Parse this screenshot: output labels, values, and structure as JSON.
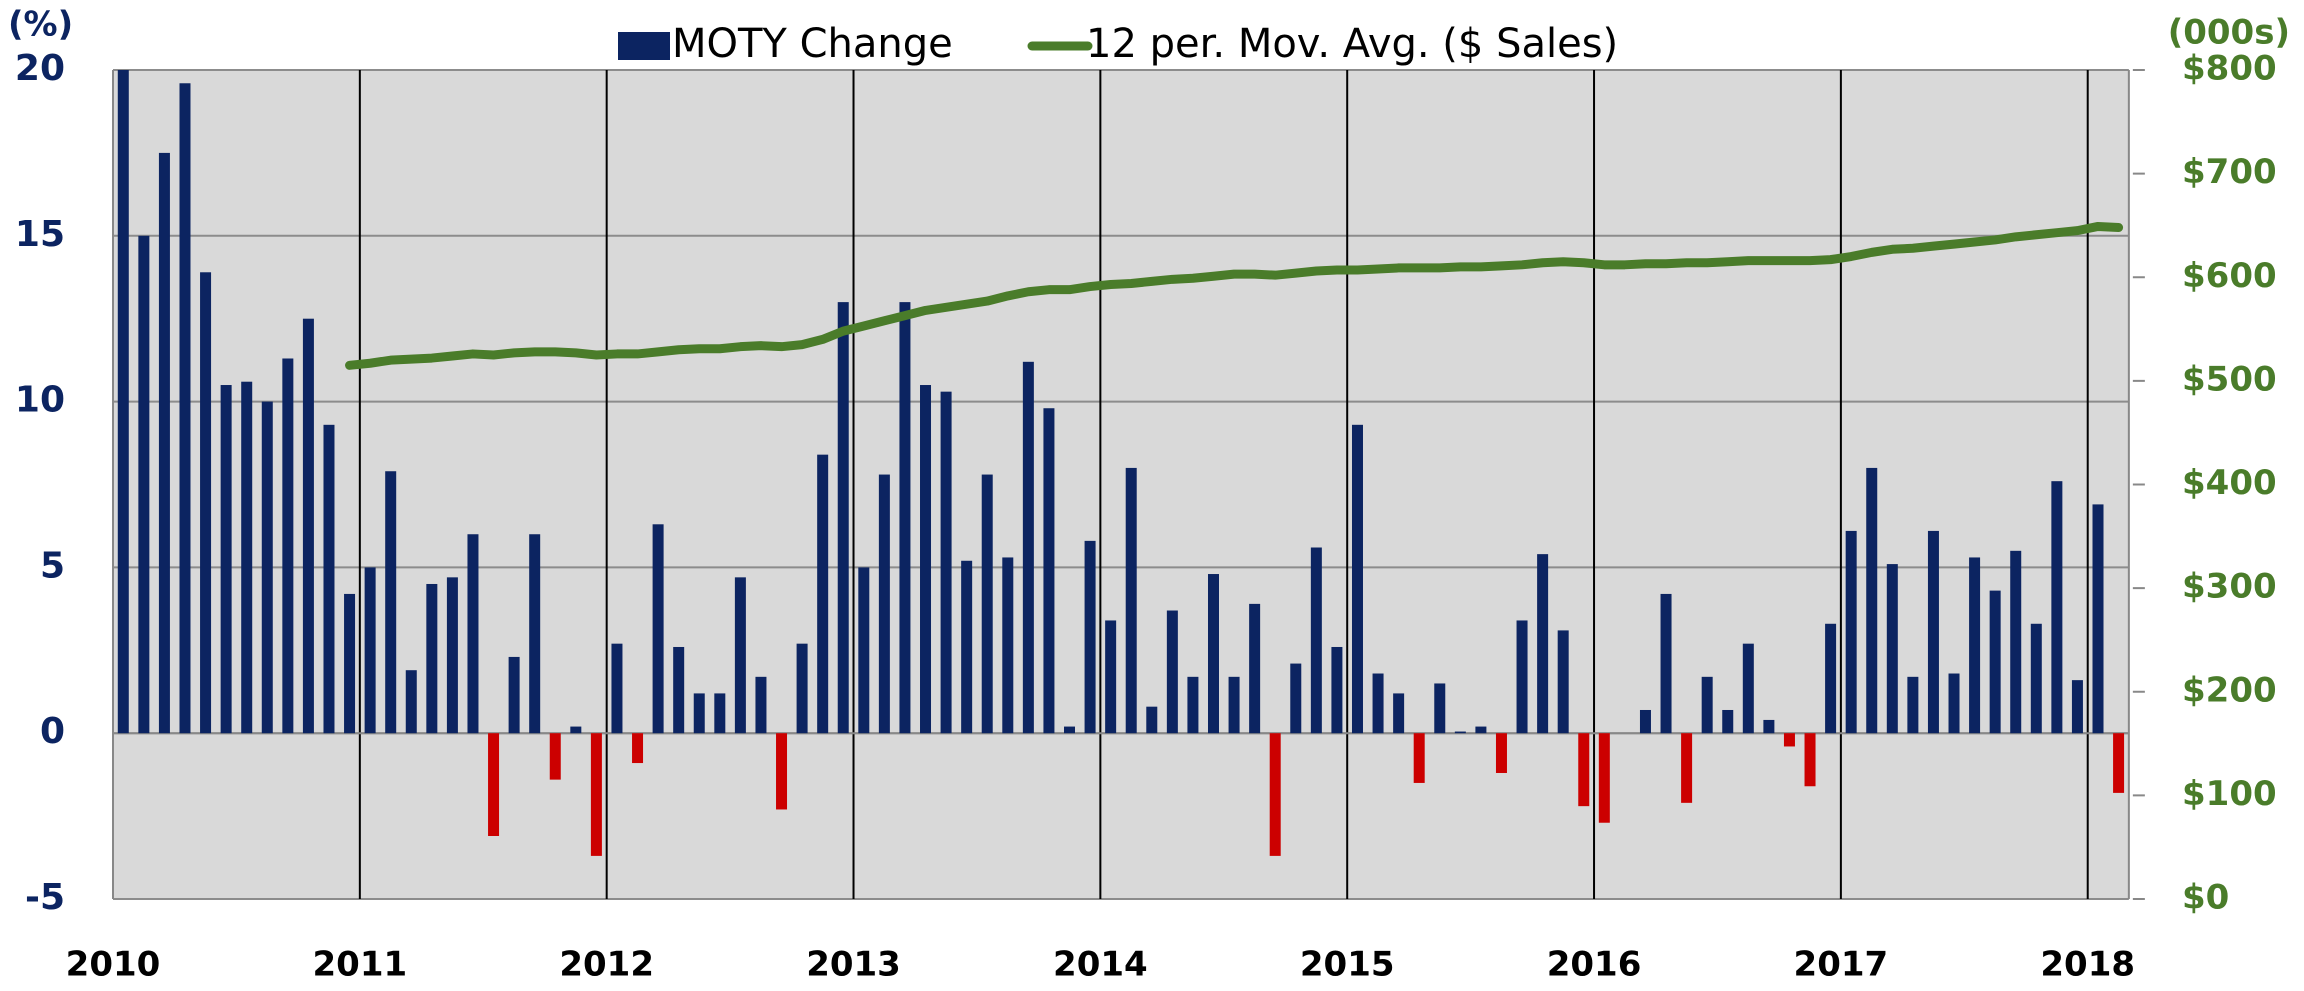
{
  "chart_data": {
    "type": "bar",
    "y_axis_label": "(%)",
    "y2_axis_label": "(000s)",
    "categories": [
      "2010",
      null,
      null,
      null,
      null,
      null,
      null,
      null,
      null,
      null,
      null,
      null,
      "2011",
      null,
      null,
      null,
      null,
      null,
      null,
      null,
      null,
      null,
      null,
      null,
      "2012",
      null,
      null,
      null,
      null,
      null,
      null,
      null,
      null,
      null,
      null,
      null,
      "2013",
      null,
      null,
      null,
      null,
      null,
      null,
      null,
      null,
      null,
      null,
      null,
      "2014",
      null,
      null,
      null,
      null,
      null,
      null,
      null,
      null,
      null,
      null,
      null,
      "2015",
      null,
      null,
      null,
      null,
      null,
      null,
      null,
      null,
      null,
      null,
      null,
      "2016",
      null,
      null,
      null,
      null,
      null,
      null,
      null,
      null,
      null,
      null,
      null,
      "2017",
      null,
      null,
      null,
      null,
      null,
      null,
      null,
      null,
      null,
      null,
      null,
      "2018",
      null
    ],
    "series": [
      {
        "name": "MOTY Change",
        "type": "bar",
        "color": "#0c2461",
        "negative_color": "#cc0000",
        "values": [
          20,
          15,
          17.5,
          19.6,
          13.9,
          10.5,
          10.6,
          10.0,
          11.3,
          12.5,
          9.3,
          4.2,
          5.0,
          7.9,
          1.9,
          4.5,
          4.7,
          6.0,
          -3.1,
          2.3,
          6.0,
          -1.4,
          0.2,
          -3.7,
          2.7,
          -0.9,
          6.3,
          2.6,
          1.2,
          1.2,
          4.7,
          1.7,
          -2.3,
          2.7,
          8.4,
          13.0,
          5.0,
          7.8,
          13.0,
          10.5,
          10.3,
          5.2,
          7.8,
          5.3,
          11.2,
          9.8,
          0.2,
          5.8,
          3.4,
          8.0,
          0.8,
          3.7,
          1.7,
          4.8,
          1.7,
          3.9,
          -3.7,
          2.1,
          5.6,
          2.6,
          9.3,
          1.8,
          1.2,
          -1.5,
          1.5,
          0.05,
          0.2,
          -1.2,
          3.4,
          5.4,
          3.1,
          -2.2,
          -2.7,
          0,
          0.7,
          4.2,
          -2.1,
          1.7,
          0.7,
          2.7,
          0.4,
          -0.4,
          -1.6,
          3.3,
          6.1,
          8.0,
          5.1,
          1.7,
          6.1,
          1.8,
          5.3,
          4.3,
          5.5,
          3.3,
          7.6,
          1.6,
          6.9,
          -1.8
        ]
      },
      {
        "name": "12 per. Mov. Avg. ($ Sales)",
        "type": "line",
        "axis": "y2",
        "color": "#4a7c2a",
        "values": [
          null,
          null,
          null,
          null,
          null,
          null,
          null,
          null,
          null,
          null,
          null,
          515,
          517,
          520,
          521,
          522,
          524,
          526,
          525,
          527,
          528,
          528,
          527,
          525,
          526,
          526,
          528,
          530,
          531,
          531,
          533,
          534,
          533,
          535,
          540,
          548,
          553,
          558,
          563,
          568,
          571,
          574,
          577,
          582,
          586,
          588,
          588,
          591,
          593,
          594,
          596,
          598,
          599,
          601,
          603,
          603,
          602,
          604,
          606,
          607,
          607,
          608,
          609,
          609,
          609,
          610,
          610,
          611,
          612,
          614,
          615,
          614,
          612,
          612,
          613,
          613,
          614,
          614,
          615,
          616,
          616,
          616,
          616,
          617,
          620,
          624,
          627,
          628,
          630,
          632,
          634,
          636,
          639,
          641,
          643,
          645,
          649,
          648
        ]
      }
    ],
    "ylim": [
      -5,
      20
    ],
    "yticks": [
      -5,
      0,
      5,
      10,
      15,
      20
    ],
    "y2lim": [
      0,
      800
    ],
    "y2ticks": [
      {
        "value": 0,
        "label": "$0"
      },
      {
        "value": 100,
        "label": "$100"
      },
      {
        "value": 200,
        "label": "$200"
      },
      {
        "value": 300,
        "label": "$300"
      },
      {
        "value": 400,
        "label": "$400"
      },
      {
        "value": 500,
        "label": "$500"
      },
      {
        "value": 600,
        "label": "$600"
      },
      {
        "value": 700,
        "label": "$700"
      },
      {
        "value": 800,
        "label": "$800"
      }
    ],
    "grid": true
  }
}
